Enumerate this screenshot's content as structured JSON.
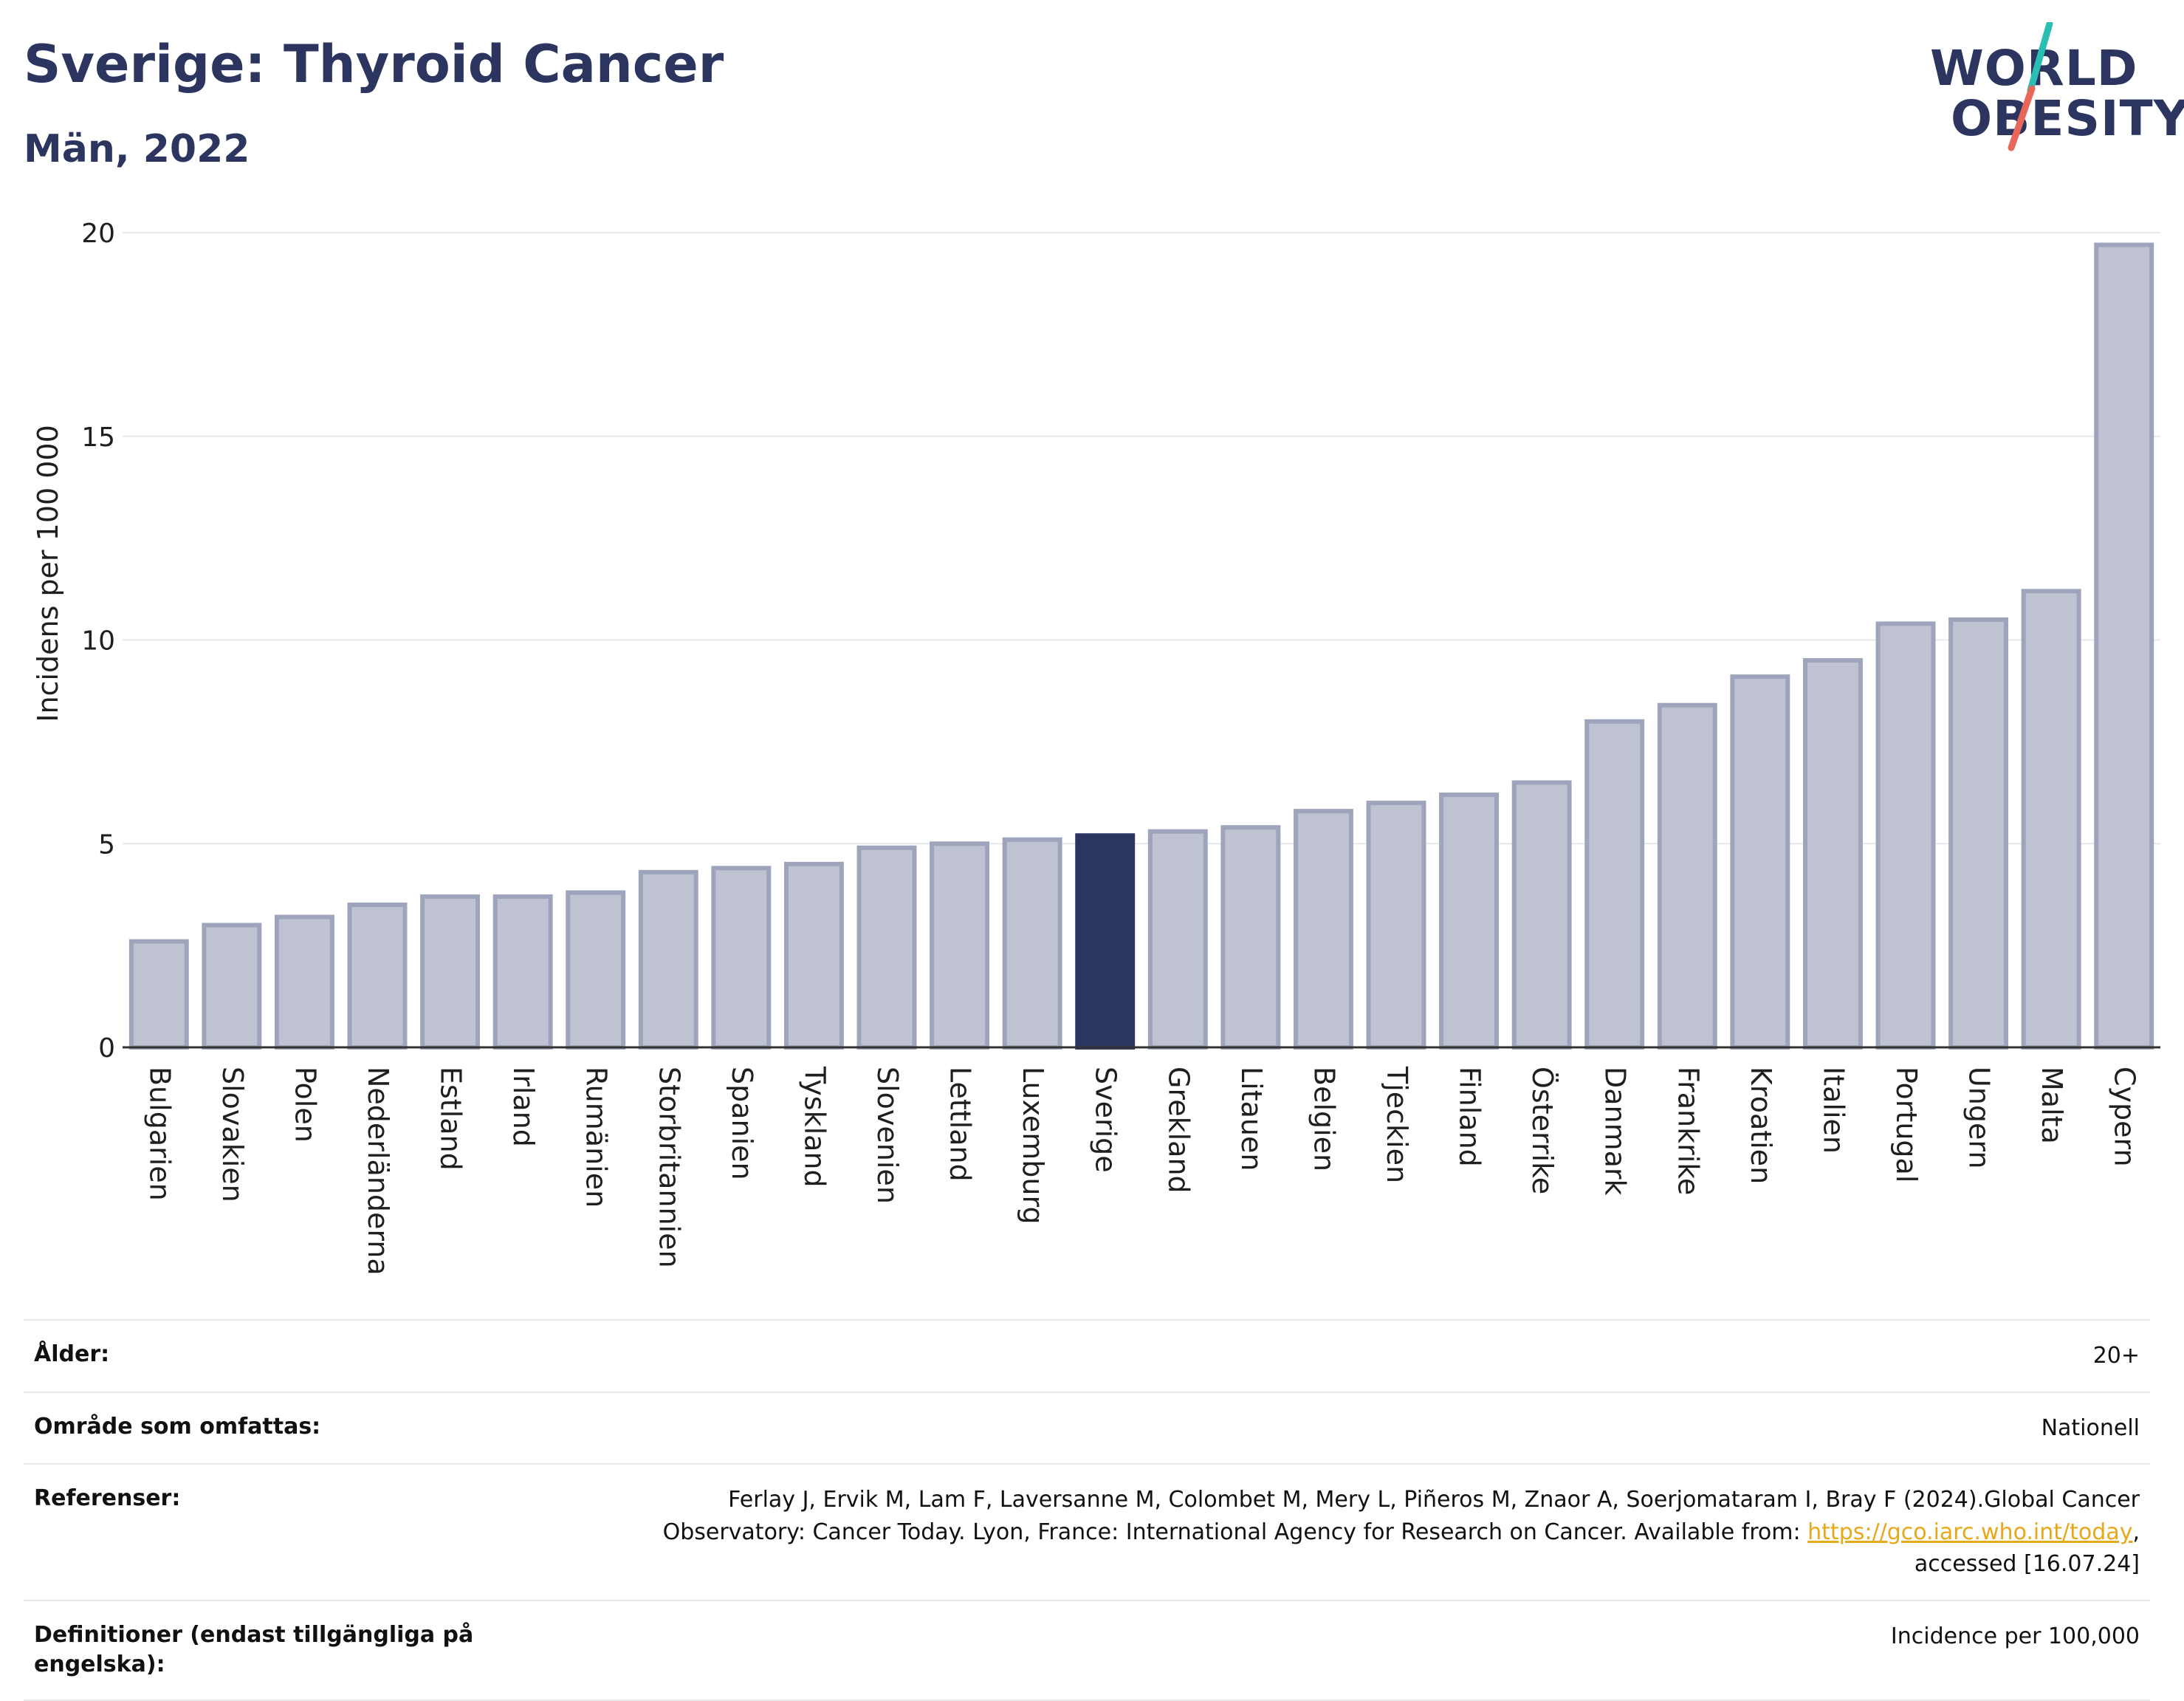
{
  "header": {
    "title": "Sverige: Thyroid Cancer",
    "subtitle": "Män, 2022"
  },
  "logo": {
    "line1": "WORLD",
    "line2": "OBESITY",
    "slash_colors": [
      "#2bbfb3",
      "#e8665a"
    ]
  },
  "colors": {
    "bar": "#bfc3d1",
    "bar_border": "#9ea4bb",
    "highlight": "#2b3560",
    "grid": "#e6e8ee",
    "axis": "#333333"
  },
  "chart_data": {
    "type": "bar",
    "ylabel": "Incidens per 100 000",
    "ylim": [
      0,
      20
    ],
    "yticks": [
      0,
      5,
      10,
      15,
      20
    ],
    "grid": true,
    "highlight": "Sverige",
    "categories": [
      "Bulgarien",
      "Slovakien",
      "Polen",
      "Nederländerna",
      "Estland",
      "Irland",
      "Rumänien",
      "Storbritannien",
      "Spanien",
      "Tyskland",
      "Slovenien",
      "Lettland",
      "Luxemburg",
      "Sverige",
      "Grekland",
      "Litauen",
      "Belgien",
      "Tjeckien",
      "Finland",
      "Österrike",
      "Danmark",
      "Frankrike",
      "Kroatien",
      "Italien",
      "Portugal",
      "Ungern",
      "Malta",
      "Cypern"
    ],
    "values": [
      2.6,
      3.0,
      3.2,
      3.5,
      3.7,
      3.7,
      3.8,
      4.3,
      4.4,
      4.5,
      4.9,
      5.0,
      5.1,
      5.2,
      5.3,
      5.4,
      5.8,
      6.0,
      6.2,
      6.5,
      8.0,
      8.4,
      9.1,
      9.5,
      10.4,
      10.5,
      11.2,
      19.7
    ]
  },
  "meta": {
    "age_label": "Ålder:",
    "age_value": "20+",
    "area_label": "Område som omfattas:",
    "area_value": "Nationell",
    "ref_label": "Referenser:",
    "ref_text_1": "Ferlay J, Ervik M, Lam F, Laversanne M, Colombet M, Mery L, Piñeros M, Znaor A, Soerjomataram I, Bray F (2024).Global Cancer",
    "ref_text_2": "Observatory: Cancer Today. Lyon, France: International Agency for Research on Cancer. Available from: ",
    "ref_link": "https://gco.iarc.who.int/today",
    "ref_text_3": ",",
    "ref_text_4": "accessed [16.07.24]",
    "def_label": "Definitioner (endast tillgängliga på engelska):",
    "def_value": "Incidence per 100,000"
  }
}
